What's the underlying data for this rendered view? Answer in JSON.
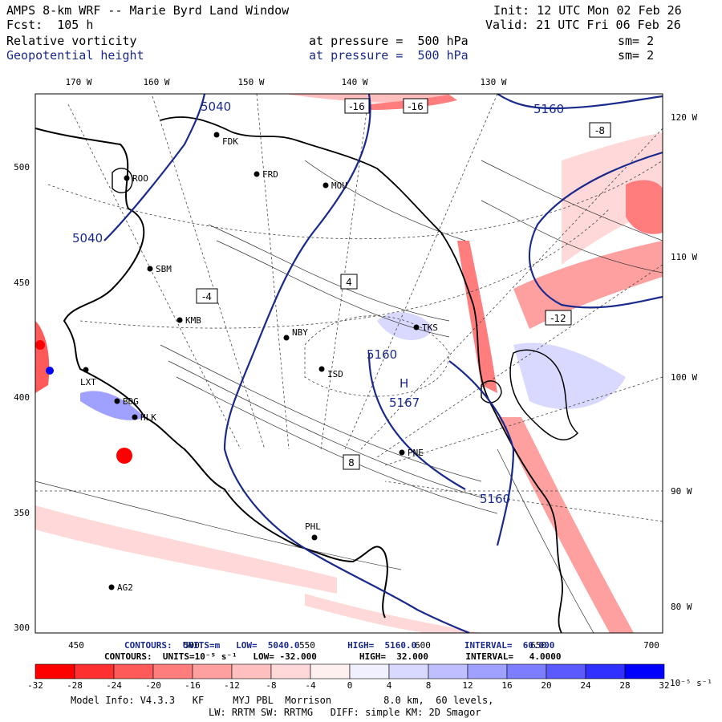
{
  "header": {
    "title": "AMPS 8-km WRF -- Marie Byrd Land Window",
    "init": "Init: 12 UTC Mon 02 Feb 26",
    "fcst": "Fcst:  105 h",
    "valid": "Valid: 21 UTC Fri 06 Feb 26",
    "field1": {
      "name": "Relative vorticity",
      "level": "at pressure =  500 hPa",
      "sm": "sm= 2"
    },
    "field2": {
      "name": "Geopotential height",
      "level": "at pressure =  500 hPa",
      "sm": "sm= 2"
    }
  },
  "axes": {
    "top_lon": [
      "170 W",
      "160 W",
      "150 W",
      "140 W",
      "130 W"
    ],
    "right_lon": [
      "120 W",
      "110 W",
      "100 W",
      "90 W",
      "80 W"
    ],
    "left_y": [
      "500",
      "450",
      "400",
      "350",
      "300"
    ],
    "bottom_x": [
      "450",
      "500",
      "550",
      "600",
      "650",
      "700"
    ]
  },
  "stations": [
    "ROO",
    "FDK",
    "FRD",
    "MOU",
    "SBM",
    "KMB",
    "NBY",
    "TKS",
    "LXT",
    "BDG",
    "HLK",
    "ISD",
    "PNE",
    "PHL",
    "AG2"
  ],
  "height_contours": {
    "values": [
      "5040",
      "5040",
      "5160",
      "5160",
      "5160",
      "5167",
      "H"
    ],
    "color": "#1a2a8c"
  },
  "vort_labels": [
    "-16",
    "-16",
    "-8",
    "4",
    "-4",
    "8",
    "-12"
  ],
  "contour_info": {
    "line1": "CONTOURS:  UNITS=m   LOW=  5040.0         HIGH=  5160.0         INTERVAL=  60.000",
    "line2": "CONTOURS:  UNITS=10⁻⁵ s⁻¹   LOW= -32.000        HIGH=  32.000       INTERVAL=   4.0000"
  },
  "colorbar": {
    "ticks": [
      "-32",
      "-28",
      "-24",
      "-20",
      "-16",
      "-12",
      "-8",
      "-4",
      "0",
      "4",
      "8",
      "12",
      "16",
      "20",
      "24",
      "28",
      "32"
    ],
    "unit": "10⁻⁵ s⁻¹",
    "colors": [
      "#ff0000",
      "#ff3030",
      "#ff5a5a",
      "#ff7d7d",
      "#ffa0a0",
      "#ffbfbf",
      "#ffd9d9",
      "#fff0f0",
      "#f0f0ff",
      "#d9d9ff",
      "#bfbfff",
      "#a0a0ff",
      "#7d7dff",
      "#5a5aff",
      "#3030ff",
      "#0000ff"
    ]
  },
  "model_info": {
    "line1": "Model Info: V4.3.3   KF     MYJ PBL  Morrison         8.0 km,  60 levels,",
    "line2": "LW: RRTM SW: RRTMG   DIFF: simple KM: 2D Smagor"
  }
}
